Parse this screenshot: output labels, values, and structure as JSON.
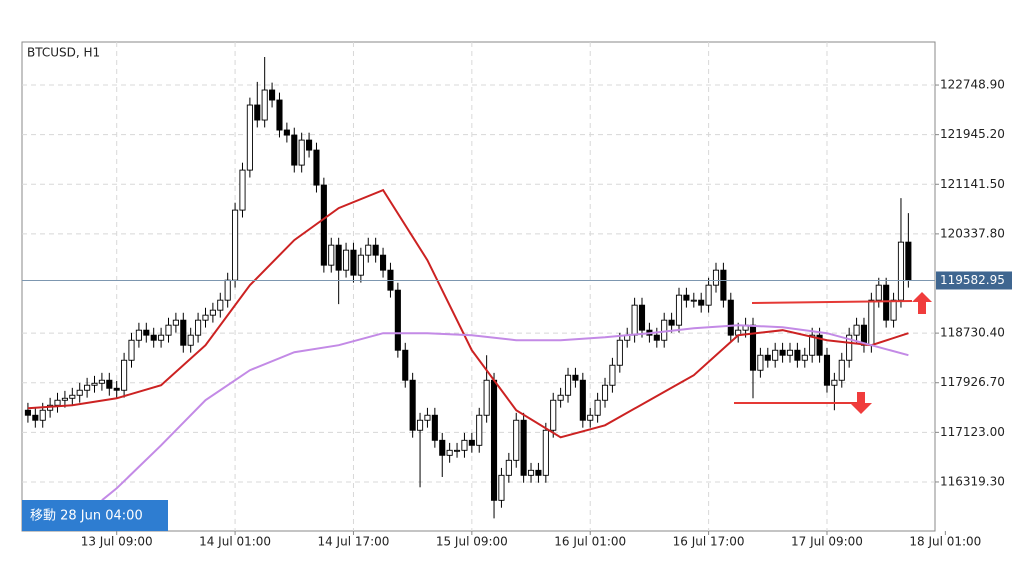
{
  "chart_data": {
    "type": "candlestick",
    "title": "BTCUSD, H1",
    "button_label": "移動 28 Jun 04:00",
    "last_price": 119582.95,
    "ylim": [
      115525,
      123446
    ],
    "yticks": [
      {
        "value": 122748.9,
        "label": "122748.90"
      },
      {
        "value": 121945.2,
        "label": "121945.20"
      },
      {
        "value": 121141.5,
        "label": "121141.50"
      },
      {
        "value": 120337.8,
        "label": "120337.80"
      },
      {
        "value": 118730.4,
        "label": "118730.40"
      },
      {
        "value": 117926.7,
        "label": "117926.70"
      },
      {
        "value": 117123,
        "label": "117123.00"
      },
      {
        "value": 116319.3,
        "label": "116319.30"
      }
    ],
    "xlim": [
      -0.8,
      122.6
    ],
    "xticks": [
      {
        "value": 12,
        "label": "13 Jul 09:00"
      },
      {
        "value": 28,
        "label": "14 Jul 01:00"
      },
      {
        "value": 44,
        "label": "14 Jul 17:00"
      },
      {
        "value": 60,
        "label": "15 Jul 09:00"
      },
      {
        "value": 76,
        "label": "16 Jul 01:00"
      },
      {
        "value": 92,
        "label": "16 Jul 17:00"
      },
      {
        "value": 108,
        "label": "17 Jul 09:00"
      },
      {
        "value": 124,
        "label": "18 Jul 01:00"
      }
    ],
    "grid": true,
    "up_color": "#ffffff",
    "down_color": "#000000",
    "open": [
      117481,
      117400,
      117319,
      117481,
      117562,
      117643,
      117675,
      117724,
      117805,
      117886,
      117918,
      117967,
      117837,
      117805,
      118291,
      118615,
      118778,
      118697,
      118615,
      118697,
      118859,
      118940,
      118534,
      118697,
      118940,
      119021,
      119102,
      119264,
      119588,
      120723,
      121371,
      122425,
      122182,
      122668,
      122506,
      122020,
      121938,
      121452,
      121857,
      121695,
      121128,
      119831,
      120155,
      119750,
      120074,
      119669,
      119993,
      120155,
      119993,
      119750,
      119426,
      118453,
      117967,
      117157,
      117319,
      117400,
      116994,
      116751,
      116832,
      116832,
      116994,
      116913,
      117400,
      117967,
      116022,
      116427,
      116670,
      117319,
      116427,
      116508,
      116427,
      117157,
      117643,
      117724,
      118048,
      117967,
      117319,
      117400,
      117643,
      117886,
      118210,
      118615,
      118697,
      119183,
      118778,
      118697,
      118615,
      118940,
      118859,
      119345,
      119264,
      119264,
      119183,
      119507,
      119750,
      119264,
      118697,
      118778,
      118859,
      118129,
      118372,
      118291,
      118453,
      118372,
      118453,
      118291,
      118372,
      118697,
      118372,
      117886,
      117967,
      118291,
      118697,
      118859,
      118534,
      119264,
      119507,
      118940,
      119264,
      120204
    ],
    "high": [
      117601,
      117520,
      117601,
      117682,
      117763,
      117795,
      117844,
      117925,
      118006,
      118038,
      118087,
      118087,
      117957,
      118411,
      118735,
      118898,
      118898,
      118817,
      118817,
      118979,
      119060,
      119060,
      118817,
      119060,
      119141,
      119222,
      119384,
      119708,
      120843,
      121491,
      122545,
      122800,
      123203,
      122788,
      122626,
      122140,
      122058,
      121977,
      121977,
      121815,
      121248,
      120275,
      120275,
      120194,
      120194,
      120113,
      120275,
      120275,
      120113,
      119870,
      119546,
      118573,
      118087,
      117439,
      117520,
      117520,
      117114,
      116952,
      116952,
      117114,
      117114,
      117520,
      118372,
      118087,
      116547,
      116790,
      117439,
      117439,
      116628,
      116628,
      117277,
      117763,
      117844,
      118168,
      118168,
      118087,
      117520,
      117763,
      118006,
      118330,
      118735,
      118817,
      119303,
      119303,
      118898,
      118817,
      119060,
      119060,
      119465,
      119465,
      119384,
      119384,
      119627,
      119870,
      119870,
      119384,
      118898,
      118979,
      118979,
      118492,
      118492,
      118573,
      118573,
      118573,
      118573,
      118492,
      118817,
      118817,
      118492,
      118087,
      118411,
      118817,
      118979,
      118979,
      119384,
      119627,
      119627,
      119384,
      120917,
      120674
    ],
    "low": [
      117280,
      117199,
      117199,
      117361,
      117442,
      117523,
      117555,
      117604,
      117685,
      117766,
      117798,
      117717,
      117685,
      117685,
      118171,
      118495,
      118577,
      118495,
      118495,
      118577,
      118739,
      118414,
      118414,
      118577,
      118820,
      118901,
      118982,
      119144,
      119468,
      120603,
      121251,
      122062,
      122062,
      122386,
      121900,
      121818,
      121332,
      121332,
      121575,
      121008,
      119711,
      119711,
      119200,
      119630,
      119549,
      119549,
      119873,
      119873,
      119630,
      119306,
      118333,
      117847,
      117037,
      116233,
      117199,
      116874,
      116400,
      116631,
      116712,
      116712,
      116793,
      116793,
      117280,
      115730,
      115902,
      116307,
      116550,
      116307,
      116307,
      116307,
      116307,
      117037,
      117523,
      117604,
      117847,
      117199,
      117199,
      117280,
      117523,
      117766,
      118090,
      118495,
      118577,
      118658,
      118577,
      118495,
      118495,
      118739,
      118739,
      119144,
      119144,
      119063,
      119063,
      119387,
      119144,
      118577,
      118577,
      118658,
      117675,
      118009,
      118171,
      118171,
      118252,
      118252,
      118171,
      118171,
      118252,
      118252,
      117766,
      117481,
      117847,
      118171,
      118577,
      118414,
      118414,
      119144,
      118820,
      118820,
      119144,
      119468
    ],
    "close": [
      117400,
      117319,
      117481,
      117562,
      117643,
      117675,
      117724,
      117805,
      117886,
      117918,
      117967,
      117837,
      117805,
      118291,
      118615,
      118778,
      118697,
      118615,
      118697,
      118859,
      118940,
      118534,
      118697,
      118940,
      119021,
      119102,
      119264,
      119588,
      120723,
      121371,
      122425,
      122182,
      122668,
      122506,
      122020,
      121938,
      121452,
      121857,
      121695,
      121128,
      119831,
      120155,
      119750,
      120074,
      119669,
      119993,
      120155,
      119993,
      119750,
      119426,
      118453,
      117967,
      117157,
      117319,
      117400,
      116994,
      116751,
      116832,
      116832,
      116994,
      116913,
      117400,
      117967,
      116022,
      116427,
      116670,
      117319,
      116427,
      116508,
      116427,
      117157,
      117643,
      117724,
      118048,
      117967,
      117319,
      117400,
      117643,
      117886,
      118210,
      118615,
      118697,
      119183,
      118778,
      118697,
      118615,
      118940,
      118859,
      119345,
      119264,
      119264,
      119183,
      119507,
      119750,
      119264,
      118697,
      118778,
      118859,
      118129,
      118372,
      118291,
      118453,
      118372,
      118453,
      118291,
      118372,
      118697,
      118372,
      117886,
      117967,
      118291,
      118697,
      118859,
      118534,
      119264,
      119507,
      118940,
      119264,
      120204,
      119588
    ],
    "lines": [
      {
        "color": "#cc2222",
        "x": [
          0,
          6,
          12,
          18,
          24,
          30,
          36,
          42,
          48,
          54,
          60,
          66,
          72,
          78,
          84,
          90,
          96,
          102,
          108,
          114,
          119
        ],
        "values": [
          117513,
          117562,
          117675,
          117886,
          118534,
          119507,
          120237,
          120755,
          121047,
          119912,
          118453,
          117481,
          117043,
          117237,
          117643,
          118048,
          118697,
          118778,
          118615,
          118534,
          118729
        ]
      },
      {
        "color": "#c38ae6",
        "x": [
          10,
          12,
          18,
          24,
          30,
          36,
          42,
          48,
          54,
          60,
          66,
          72,
          78,
          84,
          90,
          96,
          102,
          108,
          114,
          119
        ],
        "values": [
          116022,
          116216,
          116913,
          117643,
          118129,
          118421,
          118534,
          118729,
          118729,
          118697,
          118615,
          118615,
          118664,
          118729,
          118810,
          118859,
          118827,
          118729,
          118534,
          118372
        ]
      }
    ]
  }
}
